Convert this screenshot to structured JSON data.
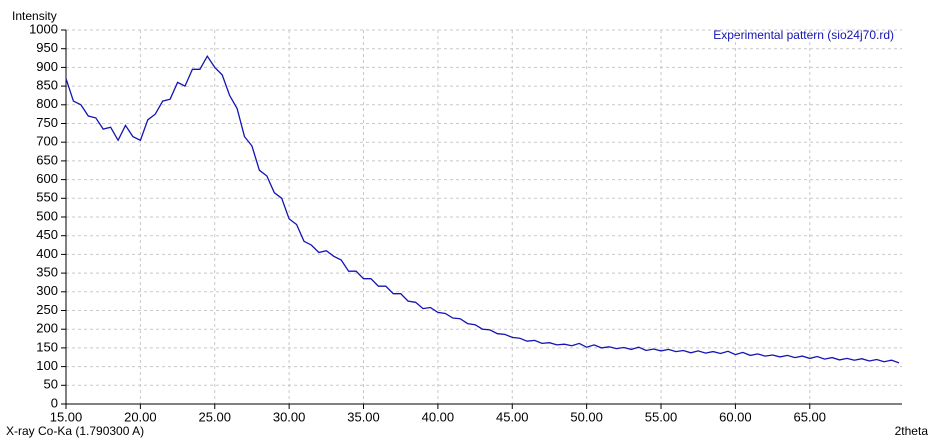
{
  "chart_data": {
    "type": "line",
    "y_label": "Intensity",
    "legend_text": "Experimental pattern (sio24j70.rd)",
    "x_note": "X-ray Co-Ka (1.790300 A)",
    "x_label": "2theta",
    "grid": true,
    "xlim": [
      15,
      71.2
    ],
    "ylim": [
      0,
      1000
    ],
    "xticks": [
      {
        "value": 15,
        "label": "15.00"
      },
      {
        "value": 20,
        "label": "20.00"
      },
      {
        "value": 25,
        "label": "25.00"
      },
      {
        "value": 30,
        "label": "30.00"
      },
      {
        "value": 35,
        "label": "35.00"
      },
      {
        "value": 40,
        "label": "40.00"
      },
      {
        "value": 45,
        "label": "45.00"
      },
      {
        "value": 50,
        "label": "50.00"
      },
      {
        "value": 55,
        "label": "55.00"
      },
      {
        "value": 60,
        "label": "60.00"
      },
      {
        "value": 65,
        "label": "65.00"
      }
    ],
    "yticks": [
      0,
      50,
      100,
      150,
      200,
      250,
      300,
      350,
      400,
      450,
      500,
      550,
      600,
      650,
      700,
      750,
      800,
      850,
      900,
      950,
      1000
    ],
    "series": [
      {
        "color": "#1414b4",
        "x": [
          15,
          15.5,
          16,
          16.5,
          17,
          17.5,
          18,
          18.5,
          19,
          19.5,
          20,
          20.5,
          21,
          21.5,
          22,
          22.5,
          23,
          23.5,
          24,
          24.5,
          25,
          25.5,
          26,
          26.5,
          27,
          27.5,
          28,
          28.5,
          29,
          29.5,
          30,
          30.5,
          31,
          31.5,
          32,
          32.5,
          33,
          33.5,
          34,
          34.5,
          35,
          35.5,
          36,
          36.5,
          37,
          37.5,
          38,
          38.5,
          39,
          39.5,
          40,
          40.5,
          41,
          41.5,
          42,
          42.5,
          43,
          43.5,
          44,
          44.5,
          45,
          45.5,
          46,
          46.5,
          47,
          47.5,
          48,
          48.5,
          49,
          49.5,
          50,
          50.5,
          51,
          51.5,
          52,
          52.5,
          53,
          53.5,
          54,
          54.5,
          55,
          55.5,
          56,
          56.5,
          57,
          57.5,
          58,
          58.5,
          59,
          59.5,
          60,
          60.5,
          61,
          61.5,
          62,
          62.5,
          63,
          63.5,
          64,
          64.5,
          65,
          65.5,
          66,
          66.5,
          67,
          67.5,
          68,
          68.5,
          69,
          69.5,
          70,
          70.5,
          71
        ],
        "values": [
          870,
          810,
          800,
          770,
          765,
          735,
          740,
          705,
          745,
          715,
          705,
          760,
          775,
          810,
          815,
          860,
          850,
          895,
          895,
          930,
          900,
          880,
          825,
          790,
          715,
          690,
          625,
          610,
          565,
          550,
          495,
          480,
          435,
          425,
          405,
          410,
          395,
          385,
          355,
          355,
          335,
          335,
          315,
          315,
          295,
          295,
          275,
          272,
          255,
          258,
          245,
          242,
          230,
          228,
          215,
          212,
          200,
          198,
          188,
          186,
          178,
          176,
          168,
          170,
          162,
          164,
          158,
          160,
          156,
          162,
          152,
          158,
          150,
          153,
          148,
          151,
          146,
          152,
          143,
          147,
          142,
          146,
          140,
          143,
          137,
          142,
          136,
          140,
          135,
          141,
          132,
          138,
          130,
          134,
          128,
          131,
          126,
          130,
          124,
          128,
          122,
          127,
          120,
          124,
          118,
          122,
          117,
          121,
          115,
          119,
          113,
          117,
          110
        ]
      }
    ]
  }
}
